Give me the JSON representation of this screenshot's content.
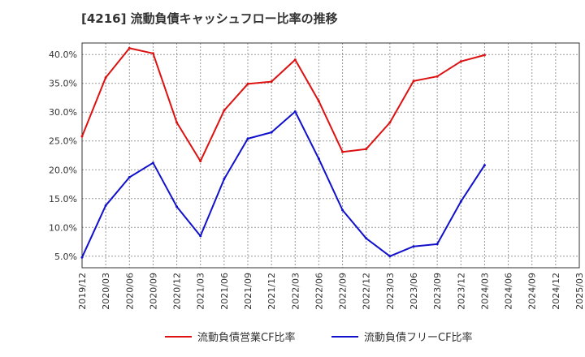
{
  "chart_data": {
    "type": "line",
    "title": "[4216]  流動負債キャッシュフロー比率の推移",
    "xlabel": "",
    "ylabel": "",
    "x": [
      "2019/12",
      "2020/03",
      "2020/06",
      "2020/09",
      "2020/12",
      "2021/03",
      "2021/06",
      "2021/09",
      "2021/12",
      "2022/03",
      "2022/06",
      "2022/09",
      "2022/12",
      "2023/03",
      "2023/06",
      "2023/09",
      "2023/12",
      "2024/03",
      "2024/06",
      "2024/09",
      "2024/12",
      "2025/03"
    ],
    "ylim": [
      3,
      42
    ],
    "yticks": [
      5,
      10,
      15,
      20,
      25,
      30,
      35,
      40
    ],
    "ytick_labels": [
      "5.0%",
      "10.0%",
      "15.0%",
      "20.0%",
      "25.0%",
      "30.0%",
      "35.0%",
      "40.0%"
    ],
    "grid": true,
    "legend_position": "bottom",
    "series": [
      {
        "name": "流動負債営業CF比率",
        "color": "#dd1111",
        "values": [
          25.8,
          36.0,
          41.1,
          40.2,
          28.2,
          21.5,
          30.3,
          34.9,
          35.3,
          39.1,
          31.9,
          23.1,
          23.6,
          28.2,
          35.4,
          36.2,
          38.8,
          39.9,
          null,
          null,
          null,
          null
        ]
      },
      {
        "name": "流動負債フリーCF比率",
        "color": "#1111cc",
        "values": [
          4.8,
          13.8,
          18.7,
          21.2,
          13.6,
          8.5,
          18.4,
          25.4,
          26.5,
          30.1,
          21.9,
          13.0,
          8.1,
          5.0,
          6.7,
          7.1,
          14.5,
          20.8,
          null,
          null,
          null,
          null
        ]
      }
    ]
  }
}
